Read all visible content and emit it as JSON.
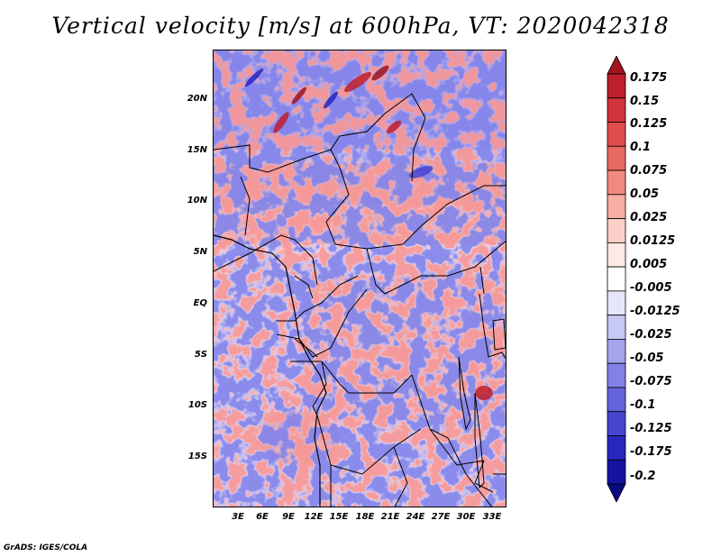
{
  "title": "Vertical velocity [m/s] at 600hPa, VT: 2020042318",
  "footer": "GrADS: IGES/COLA",
  "lat_ticks": [
    "20N",
    "15N",
    "10N",
    "5N",
    "EQ",
    "5S",
    "10S",
    "15S"
  ],
  "lon_ticks": [
    "3E",
    "6E",
    "9E",
    "12E",
    "15E",
    "18E",
    "21E",
    "24E",
    "27E",
    "30E",
    "33E"
  ],
  "legend": {
    "labels": [
      "0.175",
      "0.15",
      "0.125",
      "0.1",
      "0.075",
      "0.05",
      "0.025",
      "0.0125",
      "0.005",
      "-0.005",
      "-0.0125",
      "-0.025",
      "-0.05",
      "-0.075",
      "-0.1",
      "-0.125",
      "-0.175",
      "-0.2"
    ],
    "colors": [
      "#a0141e",
      "#be1e2d",
      "#d2323c",
      "#e04b4b",
      "#e8695f",
      "#f08a7e",
      "#f6ada3",
      "#fbd0c8",
      "#fdeae6",
      "#ffffff",
      "#e6e6fa",
      "#c8c8f5",
      "#a5a5ee",
      "#8282e6",
      "#6464dc",
      "#4646d0",
      "#2828be",
      "#1414a0",
      "#0a0a82"
    ]
  }
}
